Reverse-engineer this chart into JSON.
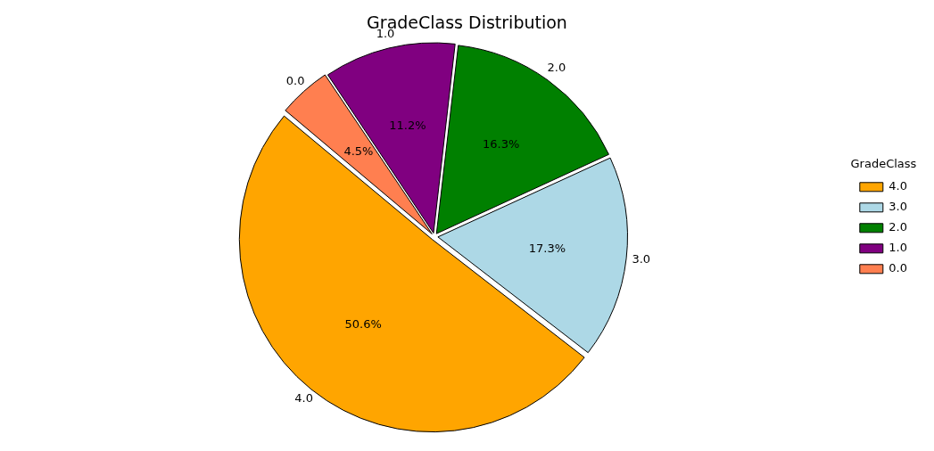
{
  "chart_data": {
    "type": "pie",
    "title": "GradeClass Distribution",
    "legend_title": "GradeClass",
    "legend": "right",
    "categories": [
      "4.0",
      "3.0",
      "2.0",
      "1.0",
      "0.0"
    ],
    "values": [
      50.6,
      17.3,
      16.3,
      11.2,
      4.5
    ],
    "colors": [
      "#ffa500",
      "#add8e6",
      "#008000",
      "#800080",
      "#ff7f50"
    ],
    "value_labels": [
      "50.6%",
      "17.3%",
      "16.3%",
      "11.2%",
      "4.5%"
    ]
  }
}
